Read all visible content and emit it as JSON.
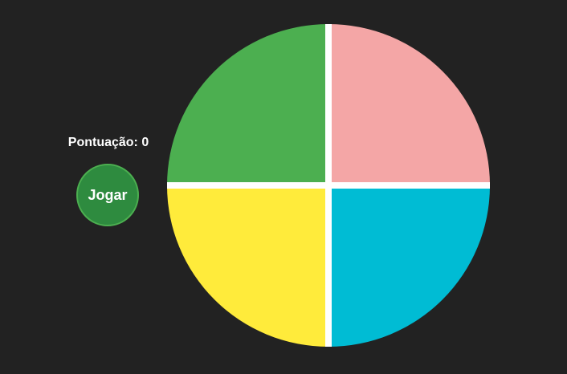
{
  "score": {
    "text": "Pontuação: 0"
  },
  "controls": {
    "play_label": "Jogar"
  },
  "board": {
    "pads": [
      {
        "id": "green",
        "color": "#4caf50"
      },
      {
        "id": "pink",
        "color": "#f4a6a6"
      },
      {
        "id": "yellow",
        "color": "#ffeb3b"
      },
      {
        "id": "cyan",
        "color": "#00bcd4"
      }
    ],
    "separator_color": "#ffffff",
    "background_color": "#222222"
  }
}
